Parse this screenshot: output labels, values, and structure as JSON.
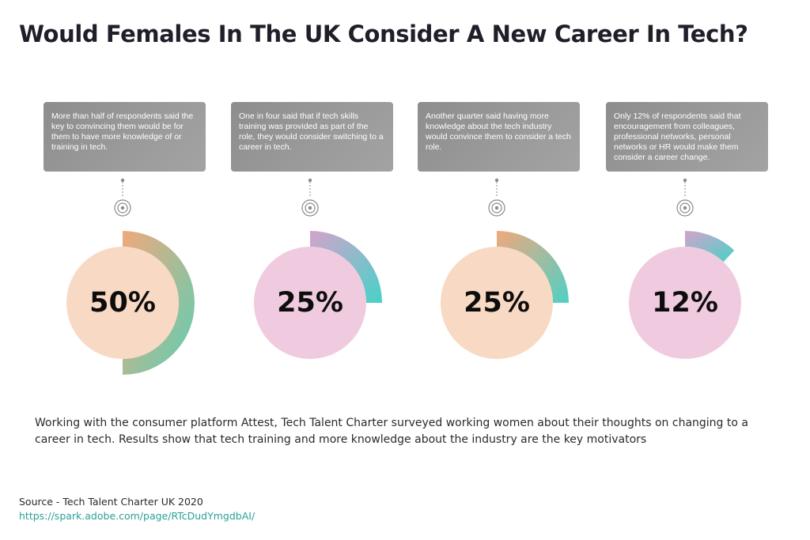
{
  "title": "Would Females In The UK Consider A New Career In Tech?",
  "chart_data": {
    "type": "pie",
    "title": "Would Females In The UK Consider A New Career In Tech?",
    "items": [
      {
        "value": 50,
        "label": "50%",
        "caption": "More than half of respondents said the key to convincing them would be for them to have more knowledge of or training in tech.",
        "circle_color": "#f8d9c3",
        "arc_colors": [
          "#f0a97c",
          "#5ccfb3"
        ]
      },
      {
        "value": 25,
        "label": "25%",
        "caption": "One in four said that if tech skills training was provided as part of the role, they would consider switching to a career in tech.",
        "circle_color": "#f0cbe0",
        "arc_colors": [
          "#d4a3cb",
          "#47d2c8"
        ]
      },
      {
        "value": 25,
        "label": "25%",
        "caption": "Another quarter said having more knowledge about the tech industry would convince them  to consider a tech role.",
        "circle_color": "#f8d9c3",
        "arc_colors": [
          "#f0a97c",
          "#4fd0c5"
        ]
      },
      {
        "value": 12,
        "label": "12%",
        "caption": "Only 12% of respondents said that encouragement from colleagues, professional networks, personal networks or HR would make them consider a career change.",
        "circle_color": "#f0cbe0",
        "arc_colors": [
          "#d4a3cb",
          "#47d2c8"
        ]
      }
    ]
  },
  "description": "Working with the consumer platform Attest, Tech Talent Charter surveyed working women about their thoughts on changing to a career in tech. Results show that tech training and more knowledge about the industry are the key motivators",
  "source": "Source - Tech Talent Charter UK 2020",
  "link": "https://spark.adobe.com/page/RTcDudYmgdbAI/"
}
